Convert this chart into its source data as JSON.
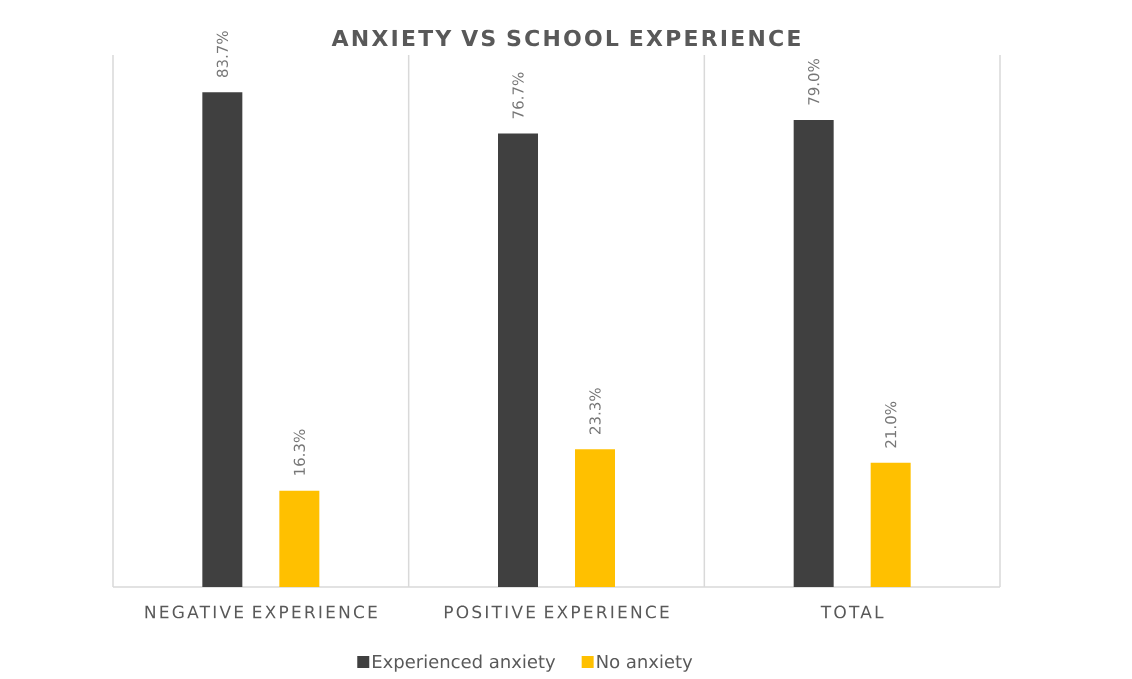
{
  "chart_data": {
    "type": "bar",
    "title": "ANXIETY VS SCHOOL EXPERIENCE",
    "categories": [
      "NEGATIVE EXPERIENCE",
      "POSITIVE EXPERIENCE",
      "TOTAL"
    ],
    "series": [
      {
        "name": "Experienced anxiety",
        "color": "#404040",
        "values": [
          83.7,
          76.7,
          79.0
        ],
        "value_labels": [
          "83.7%",
          "76.7%",
          "79.0%"
        ]
      },
      {
        "name": "No anxiety",
        "color": "#ffc000",
        "values": [
          16.3,
          23.3,
          21.0
        ],
        "value_labels": [
          "16.3%",
          "23.3%",
          "21.0%"
        ]
      }
    ],
    "ylim": [
      0,
      90
    ],
    "grid": "x",
    "legend": "bottom",
    "tick_labels": "x"
  }
}
